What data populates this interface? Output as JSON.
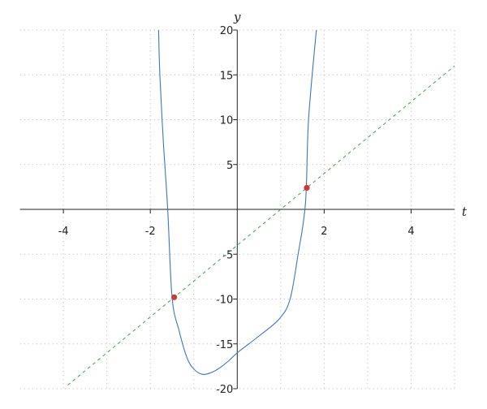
{
  "chart_data": {
    "type": "line",
    "xlabel": "t",
    "ylabel": "y",
    "xlim": [
      -5,
      5
    ],
    "ylim": [
      -20,
      20
    ],
    "xticks": [
      -4,
      -2,
      2,
      4
    ],
    "yticks": [
      -20,
      -15,
      -10,
      -5,
      5,
      10,
      15,
      20
    ],
    "grid": true,
    "series": [
      {
        "style": "solid",
        "color": "#3a76c0",
        "points": [
          [
            -1.81,
            20
          ],
          [
            -1.78,
            14.9
          ],
          [
            -1.7,
            7.5
          ],
          [
            -1.6,
            0
          ],
          [
            -1.5,
            -9.8
          ],
          [
            -1.34,
            -13.5
          ],
          [
            -1.16,
            -16.5
          ],
          [
            -1.0,
            -17.8
          ],
          [
            -0.8,
            -18.4
          ],
          [
            -0.6,
            -18.2
          ],
          [
            -0.41,
            -17.7
          ],
          [
            -0.2,
            -16.9
          ],
          [
            0,
            -16.0
          ],
          [
            0.52,
            -14.05
          ],
          [
            0.96,
            -12.25
          ],
          [
            1.21,
            -10.1
          ],
          [
            1.39,
            -5.3
          ],
          [
            1.57,
            0.72
          ],
          [
            1.64,
            10
          ],
          [
            1.82,
            20
          ]
        ]
      },
      {
        "style": "dashed",
        "color": "#4ea860",
        "points": [
          [
            -3.9,
            -19.6
          ],
          [
            5,
            16
          ]
        ]
      }
    ],
    "markers": {
      "color": "#cc3b33",
      "points": [
        [
          -1.45,
          -9.8
        ],
        [
          1.6,
          2.4
        ]
      ]
    }
  }
}
